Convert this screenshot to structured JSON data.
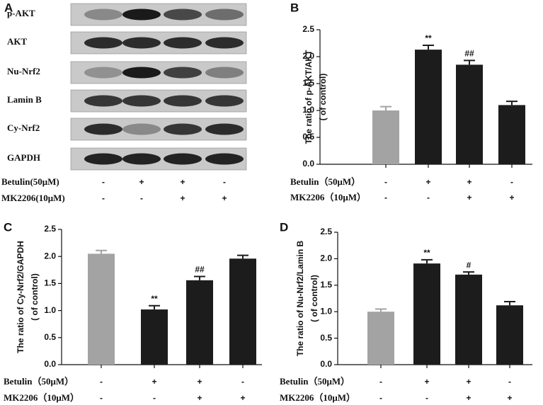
{
  "blot": {
    "panel": "A",
    "bands": [
      "p-AKT",
      "AKT",
      "Nu-Nrf2",
      "Lamin B",
      "Cy-Nrf2",
      "GAPDH"
    ],
    "treatments": [
      {
        "label": "Betulin(50μM)",
        "marks": [
          "-",
          "+",
          "+",
          "-"
        ]
      },
      {
        "label": "MK2206(10μM)",
        "marks": [
          "-",
          "-",
          "+",
          "+"
        ]
      }
    ]
  },
  "chart_data": [
    {
      "type": "bar",
      "panel": "B",
      "ylabel": [
        "The ratio of p-AKT/AKT",
        "( of control)"
      ],
      "categories": [
        null,
        null,
        null,
        null
      ],
      "values": [
        1.0,
        2.13,
        1.85,
        1.1
      ],
      "errors": [
        0.07,
        0.08,
        0.08,
        0.07
      ],
      "annotations": [
        null,
        "**",
        "##",
        null
      ],
      "colors": [
        "#a3a3a3",
        "#1c1c1c",
        "#1c1c1c",
        "#1c1c1c"
      ],
      "ylim": [
        0,
        2.5
      ],
      "yticks": [
        {
          "value": 0,
          "label": "0.0"
        },
        0.5,
        {
          "value": 1,
          "label": "1.0"
        },
        1.5,
        {
          "value": 2,
          "label": "2.0"
        },
        2.5
      ],
      "treatments": [
        {
          "label": "Betulin（50μM）",
          "marks": [
            "-",
            "+",
            "+",
            "-"
          ]
        },
        {
          "label": "MK2206（10μM）",
          "marks": [
            "-",
            "-",
            "+",
            "+"
          ]
        }
      ]
    },
    {
      "type": "bar",
      "panel": "C",
      "ylabel": [
        "The ratio of Cy-Nrf2/GAPDH",
        "( of control)"
      ],
      "categories": [
        null,
        null,
        null,
        null
      ],
      "values": [
        2.05,
        1.02,
        1.56,
        1.96
      ],
      "errors": [
        0.06,
        0.07,
        0.07,
        0.06
      ],
      "annotations": [
        null,
        "**",
        "##",
        null
      ],
      "colors": [
        "#a3a3a3",
        "#1c1c1c",
        "#1c1c1c",
        "#1c1c1c"
      ],
      "ylim": [
        0,
        2.5
      ],
      "yticks": [
        {
          "value": 0,
          "label": "0.0"
        },
        0.5,
        {
          "value": 1,
          "label": "1.0"
        },
        1.5,
        {
          "value": 2,
          "label": "2.0"
        },
        2.5
      ],
      "treatments": [
        {
          "label": "Betulin（50μM）",
          "marks": [
            "-",
            "+",
            "+",
            "-"
          ]
        },
        {
          "label": "MK2206（10μM）",
          "marks": [
            "-",
            "-",
            "+",
            "+"
          ]
        }
      ]
    },
    {
      "type": "bar",
      "panel": "D",
      "ylabel": [
        "The ratio of Nu-Nrf2/Lamin B",
        "( of control)"
      ],
      "categories": [
        null,
        null,
        null,
        null
      ],
      "values": [
        1.0,
        1.91,
        1.7,
        1.12
      ],
      "errors": [
        0.05,
        0.07,
        0.05,
        0.07
      ],
      "annotations": [
        null,
        "**",
        "#",
        null
      ],
      "colors": [
        "#a3a3a3",
        "#1c1c1c",
        "#1c1c1c",
        "#1c1c1c"
      ],
      "ylim": [
        0,
        2.5
      ],
      "yticks": [
        {
          "value": 0,
          "label": "0.0"
        },
        0.5,
        {
          "value": 1,
          "label": "1.0"
        },
        1.5,
        {
          "value": 2,
          "label": "2.0"
        },
        2.5
      ],
      "treatments": [
        {
          "label": "Betulin（50μM）",
          "marks": [
            "-",
            "+",
            "+",
            "-"
          ]
        },
        {
          "label": "MK2206（10μM）",
          "marks": [
            "-",
            "-",
            "+",
            "+"
          ]
        }
      ]
    }
  ]
}
